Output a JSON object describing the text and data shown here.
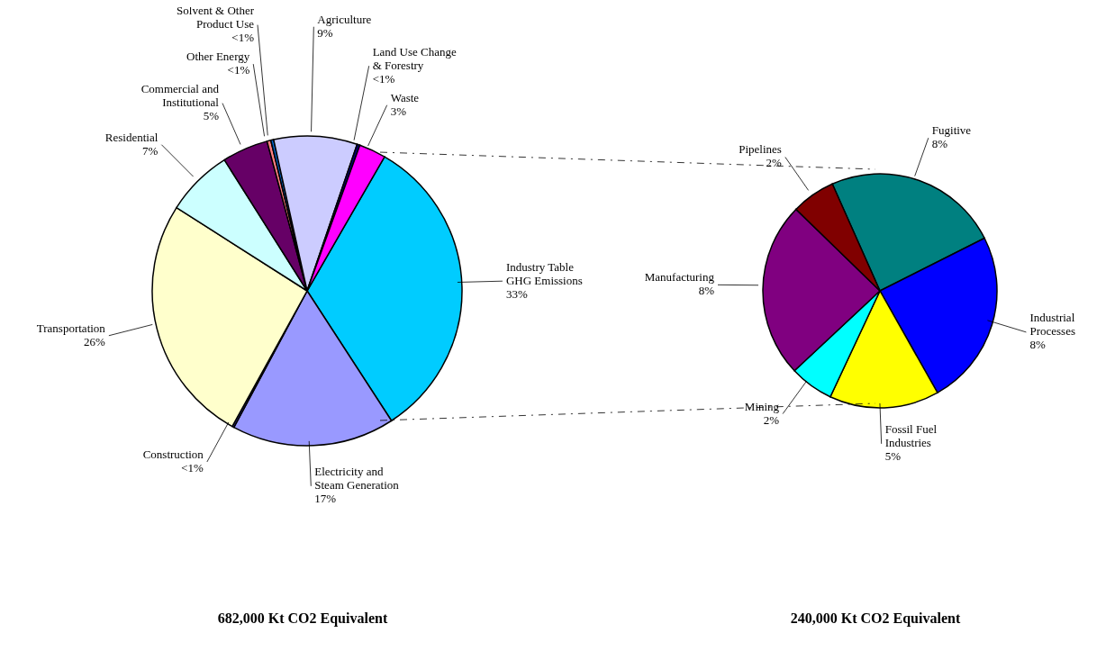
{
  "chart_data": [
    {
      "type": "pie",
      "categories": [
        "Industry Table GHG Emissions",
        "Electricity and Steam Generation",
        "Construction",
        "Transportation",
        "Residential",
        "Commercial and Institutional",
        "Other Energy",
        "Solvent & Other Product Use",
        "Agriculture",
        "Land Use Change & Forestry",
        "Waste"
      ],
      "values": [
        32.5,
        17,
        0.2,
        26,
        7,
        4.8,
        0.4,
        0.3,
        8.7,
        0.3,
        2.8
      ],
      "colors": [
        "#00ccff",
        "#9999ff",
        "#333399",
        "#ffffcc",
        "#ccffff",
        "#660066",
        "#ff8080",
        "#0066cc",
        "#ccccff",
        "#000080",
        "#ff00ff"
      ],
      "value_labels": [
        "33%",
        "17%",
        "<1%",
        "26%",
        "7%",
        "5%",
        "<1%",
        "<1%",
        "9%",
        "<1%",
        "3%"
      ],
      "annotations": [
        "682,000 Kt CO2 Equivalent"
      ]
    },
    {
      "type": "pie",
      "categories": [
        "Fugitive",
        "Industrial Processes",
        "Fossil Fuel Industries",
        "Mining",
        "Manufacturing",
        "Pipelines"
      ],
      "values": [
        8,
        8,
        5,
        2,
        8,
        2
      ],
      "colors": [
        "#008080",
        "#0000ff",
        "#ffff00",
        "#00ffff",
        "#800080",
        "#800000"
      ],
      "value_labels": [
        "8%",
        "8%",
        "5%",
        "2%",
        "8%",
        "2%"
      ],
      "annotations": [
        "240,000 Kt CO2 Equivalent"
      ]
    }
  ]
}
